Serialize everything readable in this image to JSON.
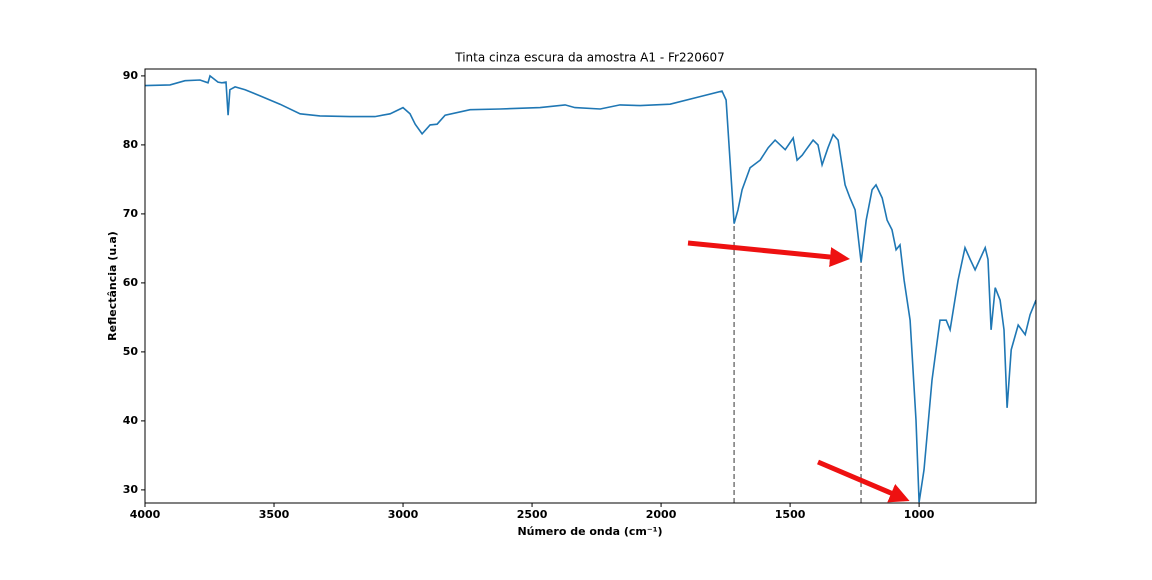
{
  "chart_data": {
    "type": "line",
    "title": "Tinta cinza escura da amostra A1 - Fr220607",
    "xlabel": "Número de onda (cm⁻¹)",
    "ylabel": "Reflectância (u.a)",
    "xlim": [
      4000,
      547
    ],
    "ylim": [
      28.1,
      91
    ],
    "xticks": [
      4000,
      3500,
      3000,
      2500,
      2000,
      1500,
      1000
    ],
    "yticks": [
      30,
      40,
      50,
      60,
      70,
      80,
      90
    ],
    "x": [
      4000,
      3903,
      3845,
      3787,
      3756,
      3748,
      3717,
      3702,
      3686,
      3678,
      3671,
      3651,
      3612,
      3554,
      3477,
      3399,
      3322,
      3205,
      3109,
      3050,
      3000,
      2973,
      2953,
      2926,
      2895,
      2868,
      2837,
      2740,
      2624,
      2469,
      2372,
      2334,
      2236,
      2159,
      2081,
      1965,
      1849,
      1764,
      1748,
      1733,
      1717,
      1702,
      1686,
      1655,
      1616,
      1585,
      1558,
      1519,
      1488,
      1473,
      1453,
      1438,
      1411,
      1392,
      1376,
      1353,
      1333,
      1314,
      1287,
      1268,
      1248,
      1225,
      1205,
      1182,
      1167,
      1143,
      1124,
      1105,
      1089,
      1074,
      1058,
      1035,
      1012,
      1000,
      981,
      950,
      919,
      895,
      880,
      849,
      822,
      802,
      783,
      744,
      733,
      721,
      705,
      686,
      671,
      659,
      643,
      616,
      589,
      570,
      547
    ],
    "series": [
      {
        "color": "#1f77b4",
        "values": [
          88.6,
          88.7,
          89.3,
          89.4,
          89.0,
          90.0,
          89.1,
          89.0,
          89.1,
          84.3,
          88.0,
          88.4,
          88.0,
          87.1,
          85.9,
          84.5,
          84.2,
          84.1,
          84.1,
          84.5,
          85.4,
          84.5,
          83.0,
          81.6,
          82.9,
          83.0,
          84.3,
          85.1,
          85.2,
          85.4,
          85.8,
          85.4,
          85.2,
          85.8,
          85.7,
          85.9,
          87.0,
          87.8,
          86.5,
          77.8,
          68.6,
          70.6,
          73.5,
          76.7,
          77.8,
          79.6,
          80.7,
          79.3,
          81.0,
          77.8,
          78.5,
          79.3,
          80.7,
          80.0,
          77.1,
          79.6,
          81.5,
          80.7,
          74.2,
          72.3,
          70.6,
          63.0,
          69.1,
          73.5,
          74.2,
          72.3,
          69.1,
          67.7,
          64.8,
          65.5,
          60.4,
          54.6,
          40.1,
          28.2,
          32.9,
          45.9,
          54.6,
          54.6,
          53.2,
          60.4,
          65.1,
          63.4,
          61.9,
          65.1,
          63.4,
          53.2,
          59.3,
          57.5,
          53.2,
          41.9,
          50.3,
          53.9,
          52.5,
          55.4,
          57.5
        ]
      }
    ],
    "vlines": [
      {
        "x": 1717,
        "y": 68.6
      },
      {
        "x": 1225,
        "y": 63.0
      }
    ],
    "vline_color": "#777777"
  }
}
